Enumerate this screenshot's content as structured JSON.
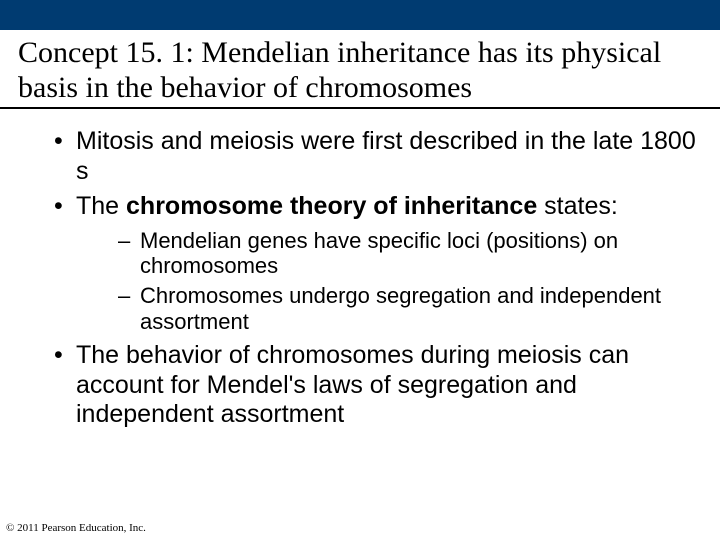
{
  "colors": {
    "top_band": "#003b71",
    "background": "#ffffff",
    "text": "#000000",
    "title_underline": "#000000"
  },
  "typography": {
    "title_font": "Times New Roman",
    "body_font": "Arial",
    "title_fontsize": 30,
    "bullet1_fontsize": 25,
    "bullet2_fontsize": 22,
    "copyright_fontsize": 11
  },
  "title": "Concept 15. 1: Mendelian inheritance has its physical basis in the behavior of chromosomes",
  "bullets": {
    "b1": " Mitosis and meiosis were first described in the late 1800 s",
    "b2_pre": " The ",
    "b2_bold": "chromosome theory of inheritance",
    "b2_post": " states:",
    "b2_sub1": "Mendelian genes have specific loci (positions) on chromosomes",
    "b2_sub2": "Chromosomes undergo segregation and independent assortment",
    "b3": " The behavior of chromosomes during meiosis can account for Mendel's laws of segregation and independent assortment"
  },
  "copyright": "© 2011 Pearson Education, Inc."
}
